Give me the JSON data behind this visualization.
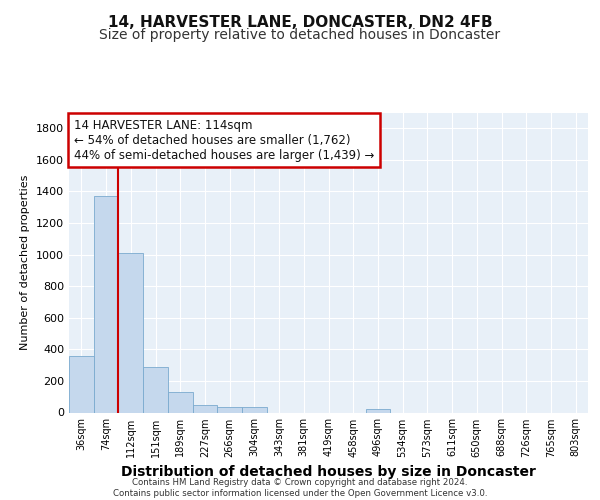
{
  "title_line1": "14, HARVESTER LANE, DONCASTER, DN2 4FB",
  "title_line2": "Size of property relative to detached houses in Doncaster",
  "xlabel": "Distribution of detached houses by size in Doncaster",
  "ylabel": "Number of detached properties",
  "footer_line1": "Contains HM Land Registry data © Crown copyright and database right 2024.",
  "footer_line2": "Contains public sector information licensed under the Open Government Licence v3.0.",
  "categories": [
    "36sqm",
    "74sqm",
    "112sqm",
    "151sqm",
    "189sqm",
    "227sqm",
    "266sqm",
    "304sqm",
    "343sqm",
    "381sqm",
    "419sqm",
    "458sqm",
    "496sqm",
    "534sqm",
    "573sqm",
    "611sqm",
    "650sqm",
    "688sqm",
    "726sqm",
    "765sqm",
    "803sqm"
  ],
  "values": [
    360,
    1370,
    1010,
    290,
    130,
    45,
    35,
    35,
    0,
    0,
    0,
    0,
    20,
    0,
    0,
    0,
    0,
    0,
    0,
    0,
    0
  ],
  "bar_color": "#c5d8ed",
  "bar_edge_color": "#7aaacf",
  "annotation_text_line1": "14 HARVESTER LANE: 114sqm",
  "annotation_text_line2": "← 54% of detached houses are smaller (1,762)",
  "annotation_text_line3": "44% of semi-detached houses are larger (1,439) →",
  "annotation_box_color": "#ffffff",
  "annotation_box_edge": "#cc0000",
  "line_color": "#cc0000",
  "ylim": [
    0,
    1900
  ],
  "yticks": [
    0,
    200,
    400,
    600,
    800,
    1000,
    1200,
    1400,
    1600,
    1800
  ],
  "background_color": "#e8f0f8",
  "grid_color": "#ffffff",
  "title_fontsize": 11,
  "subtitle_fontsize": 10,
  "ylabel_fontsize": 8,
  "xlabel_fontsize": 10
}
